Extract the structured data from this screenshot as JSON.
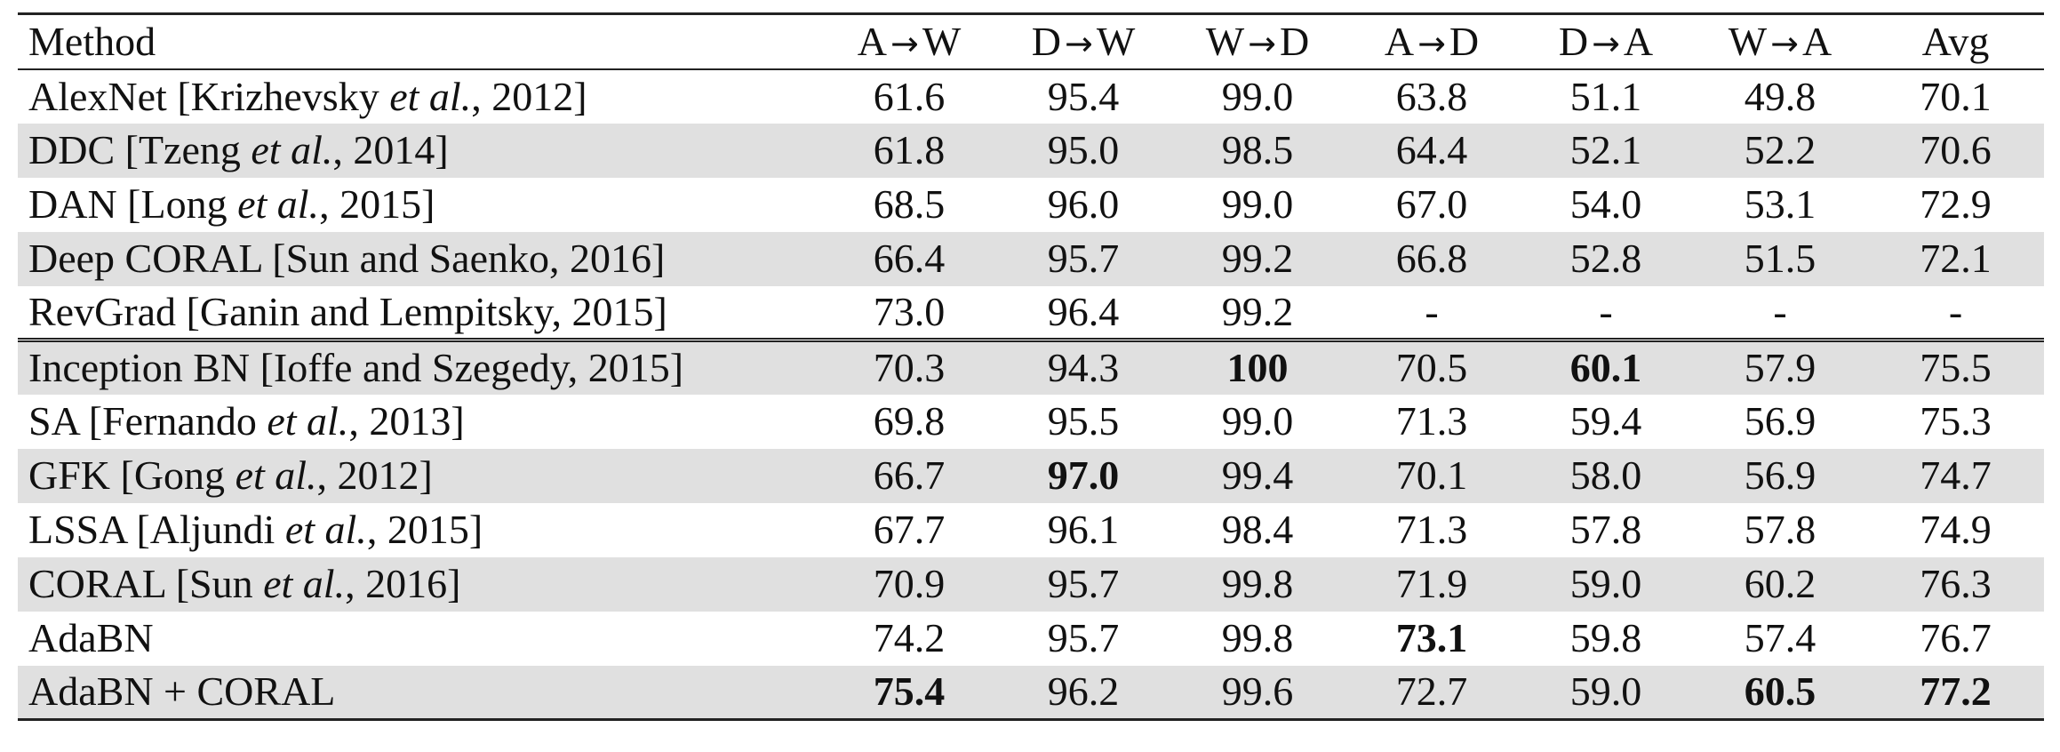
{
  "header": {
    "method": "Method",
    "tasks": [
      {
        "src": "A",
        "arrow": "→",
        "dst": "W"
      },
      {
        "src": "D",
        "arrow": "→",
        "dst": "W"
      },
      {
        "src": "W",
        "arrow": "→",
        "dst": "D"
      },
      {
        "src": "A",
        "arrow": "→",
        "dst": "D"
      },
      {
        "src": "D",
        "arrow": "→",
        "dst": "A"
      },
      {
        "src": "W",
        "arrow": "→",
        "dst": "A"
      }
    ],
    "avg": "Avg"
  },
  "group1": [
    {
      "name": "AlexNet [Krizhevsky ",
      "etal": "et al.",
      "tail": ", 2012]",
      "values": [
        "61.6",
        "95.4",
        "99.0",
        "63.8",
        "51.1",
        "49.8",
        "70.1"
      ],
      "bold": []
    },
    {
      "name": "DDC [Tzeng ",
      "etal": "et al.",
      "tail": ", 2014]",
      "values": [
        "61.8",
        "95.0",
        "98.5",
        "64.4",
        "52.1",
        "52.2",
        "70.6"
      ],
      "bold": []
    },
    {
      "name": "DAN [Long ",
      "etal": "et al.",
      "tail": ", 2015]",
      "values": [
        "68.5",
        "96.0",
        "99.0",
        "67.0",
        "54.0",
        "53.1",
        "72.9"
      ],
      "bold": []
    },
    {
      "name": "Deep CORAL [Sun and Saenko, 2016]",
      "etal": "",
      "tail": "",
      "values": [
        "66.4",
        "95.7",
        "99.2",
        "66.8",
        "52.8",
        "51.5",
        "72.1"
      ],
      "bold": []
    },
    {
      "name": "RevGrad [Ganin and Lempitsky, 2015]",
      "etal": "",
      "tail": "",
      "values": [
        "73.0",
        "96.4",
        "99.2",
        "-",
        "-",
        "-",
        "-"
      ],
      "bold": []
    }
  ],
  "group2": [
    {
      "name": "Inception BN [Ioffe and Szegedy, 2015]",
      "etal": "",
      "tail": "",
      "values": [
        "70.3",
        "94.3",
        "100",
        "70.5",
        "60.1",
        "57.9",
        "75.5"
      ],
      "bold": [
        2,
        4
      ]
    },
    {
      "name": "SA [Fernando ",
      "etal": "et al.",
      "tail": ", 2013]",
      "values": [
        "69.8",
        "95.5",
        "99.0",
        "71.3",
        "59.4",
        "56.9",
        "75.3"
      ],
      "bold": []
    },
    {
      "name": "GFK [Gong ",
      "etal": "et al.",
      "tail": ", 2012]",
      "values": [
        "66.7",
        "97.0",
        "99.4",
        "70.1",
        "58.0",
        "56.9",
        "74.7"
      ],
      "bold": [
        1
      ]
    },
    {
      "name": "LSSA [Aljundi ",
      "etal": "et al.",
      "tail": ", 2015]",
      "values": [
        "67.7",
        "96.1",
        "98.4",
        "71.3",
        "57.8",
        "57.8",
        "74.9"
      ],
      "bold": []
    },
    {
      "name": "CORAL [Sun ",
      "etal": "et al.",
      "tail": ", 2016]",
      "values": [
        "70.9",
        "95.7",
        "99.8",
        "71.9",
        "59.0",
        "60.2",
        "76.3"
      ],
      "bold": []
    },
    {
      "name": "AdaBN",
      "etal": "",
      "tail": "",
      "values": [
        "74.2",
        "95.7",
        "99.8",
        "73.1",
        "59.8",
        "57.4",
        "76.7"
      ],
      "bold": [
        3
      ]
    },
    {
      "name": "AdaBN + CORAL",
      "etal": "",
      "tail": "",
      "values": [
        "75.4",
        "96.2",
        "99.6",
        "72.7",
        "59.0",
        "60.5",
        "77.2"
      ],
      "bold": [
        0,
        5,
        6
      ]
    }
  ]
}
